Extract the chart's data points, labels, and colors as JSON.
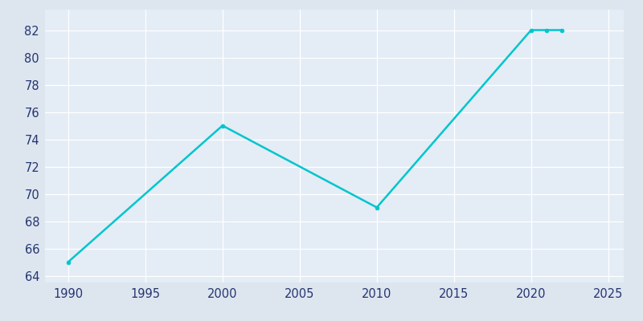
{
  "years": [
    1990,
    2000,
    2010,
    2020,
    2021,
    2022
  ],
  "population": [
    65,
    75,
    69,
    82,
    82,
    82
  ],
  "line_color": "#00c5cd",
  "marker": "o",
  "marker_size": 3.5,
  "background_color": "#dde5ef",
  "plot_bg_color": "#e4ecf5",
  "grid_color": "#ffffff",
  "xlabel": "",
  "ylabel": "",
  "xlim": [
    1988.5,
    2026
  ],
  "ylim": [
    63.5,
    83.5
  ],
  "yticks": [
    64,
    66,
    68,
    70,
    72,
    74,
    76,
    78,
    80,
    82
  ],
  "xticks": [
    1990,
    1995,
    2000,
    2005,
    2010,
    2015,
    2020,
    2025
  ],
  "tick_color": "#253570",
  "linewidth": 1.8
}
